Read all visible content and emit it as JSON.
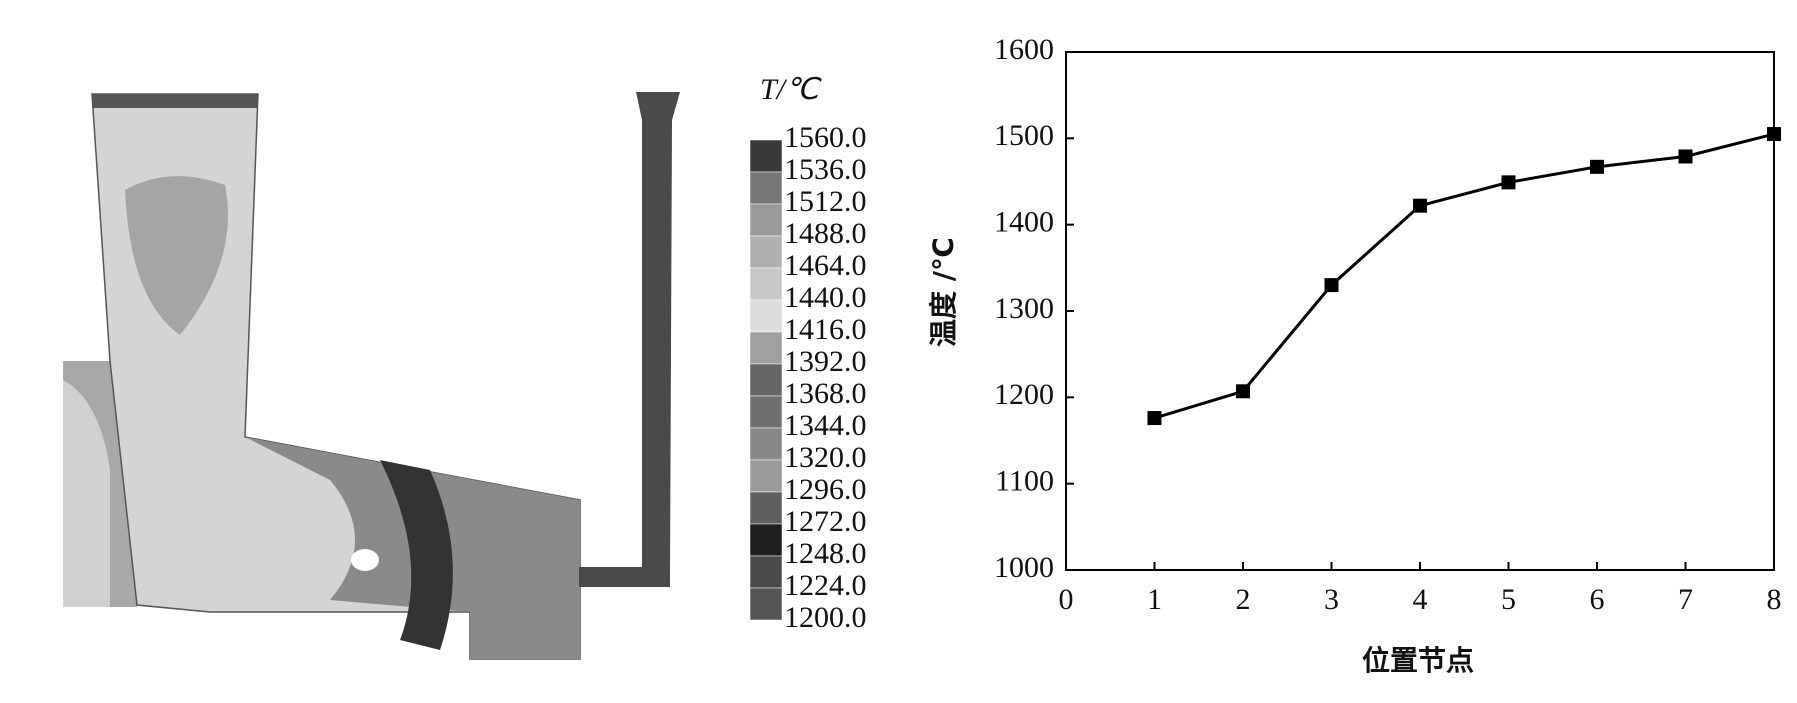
{
  "colorbar": {
    "title": "T/℃",
    "levels": [
      {
        "value": 1560,
        "label": "1560.0"
      },
      {
        "value": 1536,
        "label": "1536.0"
      },
      {
        "value": 1512,
        "label": "1512.0"
      },
      {
        "value": 1488,
        "label": "1488.0"
      },
      {
        "value": 1464,
        "label": "1464.0"
      },
      {
        "value": 1440,
        "label": "1440.0"
      },
      {
        "value": 1416,
        "label": "1416.0"
      },
      {
        "value": 1392,
        "label": "1392.0"
      },
      {
        "value": 1368,
        "label": "1368.0"
      },
      {
        "value": 1344,
        "label": "1344.0"
      },
      {
        "value": 1320,
        "label": "1320.0"
      },
      {
        "value": 1296,
        "label": "1296.0"
      },
      {
        "value": 1272,
        "label": "1272.0"
      },
      {
        "value": 1248,
        "label": "1248.0"
      },
      {
        "value": 1224,
        "label": "1224.0"
      },
      {
        "value": 1200,
        "label": "1200.0"
      }
    ],
    "colors": [
      "#3a3a3a",
      "#777777",
      "#999999",
      "#b0b0b0",
      "#c8c8c8",
      "#dddddd",
      "#a0a0a0",
      "#666666",
      "#707070",
      "#888888",
      "#999999",
      "#606060",
      "#1e1e1e",
      "#4a4a4a",
      "#555555"
    ]
  },
  "chart_data": {
    "type": "line",
    "xlabel": "位置节点",
    "ylabel": "温度 /℃",
    "x": [
      1,
      2,
      3,
      4,
      5,
      6,
      7,
      8
    ],
    "values": [
      1176,
      1207,
      1330,
      1422,
      1449,
      1467,
      1479,
      1505
    ],
    "color": "#000000",
    "xlim": [
      0,
      8
    ],
    "xticks": [
      0,
      1,
      2,
      3,
      4,
      5,
      6,
      7,
      8
    ],
    "ylim": [
      1000,
      1600
    ],
    "yticks": [
      1000,
      1100,
      1200,
      1300,
      1400,
      1500,
      1600
    ],
    "grid": false
  }
}
